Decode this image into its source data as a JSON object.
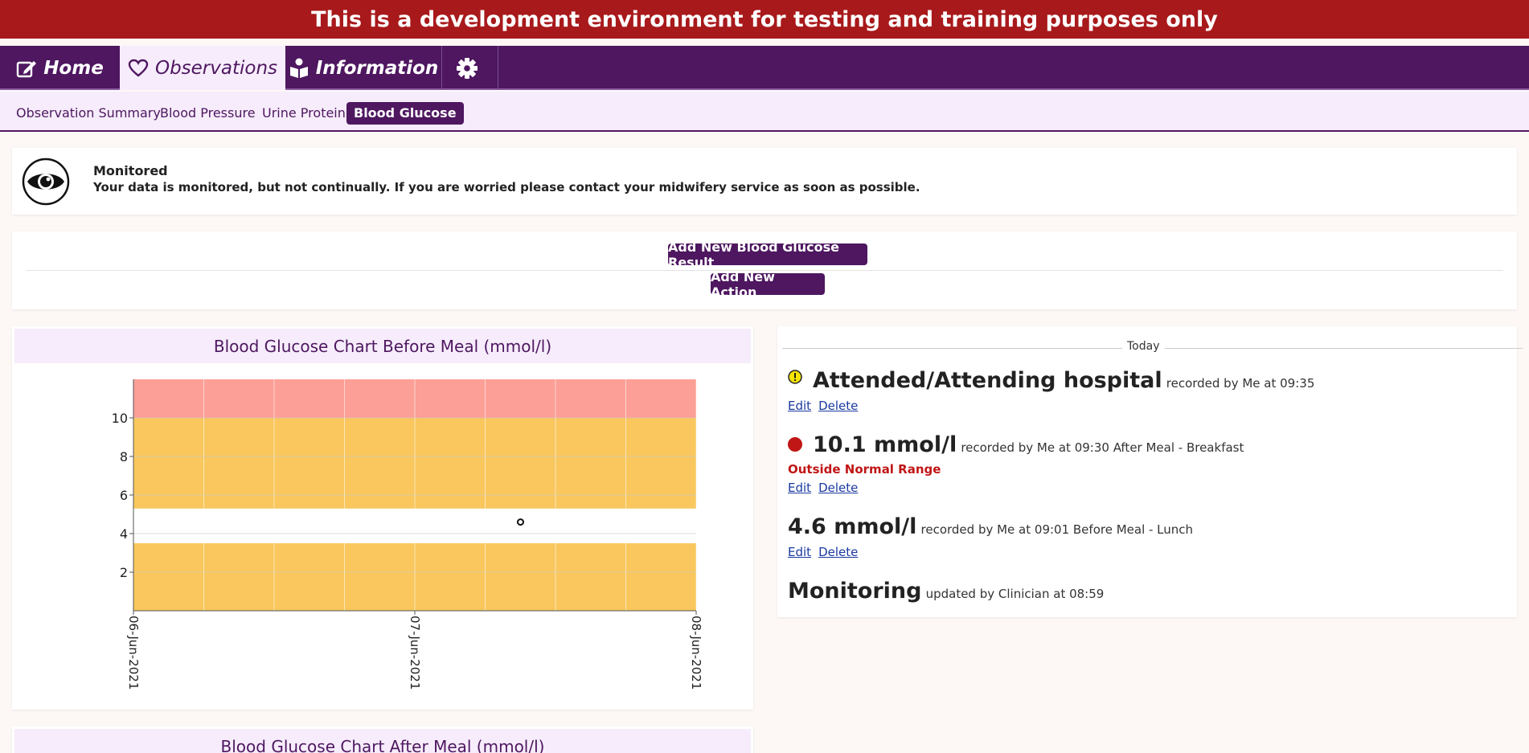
{
  "banner": "This is a development environment for testing and training purposes only",
  "nav": {
    "tabs": [
      {
        "label": "Home",
        "icon": "edit-icon"
      },
      {
        "label": "Observations",
        "icon": "heart-icon"
      },
      {
        "label": "Information",
        "icon": "book-reader-icon"
      },
      {
        "label": "",
        "icon": "gear-icon"
      }
    ],
    "active": "Observations"
  },
  "subnav": {
    "items": [
      "Observation Summary",
      "Blood Pressure",
      "Urine Protein",
      "Blood Glucose"
    ],
    "active": "Blood Glucose"
  },
  "monitor": {
    "title": "Monitored",
    "message": "Your data is monitored, but not continually. If you are worried please contact your midwifery service as soon as possible.",
    "icon": "eye-icon"
  },
  "actions": {
    "add_result": "Add New Blood Glucose Result",
    "add_action": "Add New Action"
  },
  "chart_data": [
    {
      "type": "scatter",
      "title": "Blood Glucose Chart Before Meal (mmol/l)",
      "x_tick_labels": [
        "06-Jun-2021",
        "07-Jun-2021",
        "08-Jun-2021"
      ],
      "xlim": [
        "06-Jun-2021",
        "08-Jun-2021"
      ],
      "y_ticks": [
        2,
        4,
        6,
        8,
        10
      ],
      "ylim": [
        0,
        12
      ],
      "bands": [
        {
          "from": 0,
          "to": 3.5,
          "color": "#f9c75d"
        },
        {
          "from": 3.5,
          "to": 5.3,
          "color": "#ffffff"
        },
        {
          "from": 5.3,
          "to": 10,
          "color": "#f9c75d"
        },
        {
          "from": 10,
          "to": 12,
          "color": "#fc9f96"
        }
      ],
      "points": [
        {
          "x": "07-Jun-2021 09:01",
          "y": 4.6
        }
      ],
      "grid": true
    },
    {
      "type": "scatter",
      "title": "Blood Glucose Chart After Meal (mmol/l)"
    }
  ],
  "timeline": {
    "header": "Today",
    "entries": [
      {
        "status_icon": "warning-icon",
        "status_color": "#f4e400",
        "main": "Attended/Attending hospital",
        "meta": "recorded by Me at 09:35",
        "links": [
          "Edit",
          "Delete"
        ]
      },
      {
        "status_icon": "red-dot-icon",
        "status_color": "#c01616",
        "main": "10.1 mmol/l",
        "meta": "recorded by Me at 09:30 After Meal - Breakfast",
        "warning": "Outside Normal Range",
        "links": [
          "Edit",
          "Delete"
        ]
      },
      {
        "main": "4.6 mmol/l",
        "meta": "recorded by Me at 09:01 Before Meal - Lunch",
        "links": [
          "Edit",
          "Delete"
        ]
      },
      {
        "main": "Monitoring",
        "meta": "updated by Clinician at 08:59"
      }
    ]
  }
}
